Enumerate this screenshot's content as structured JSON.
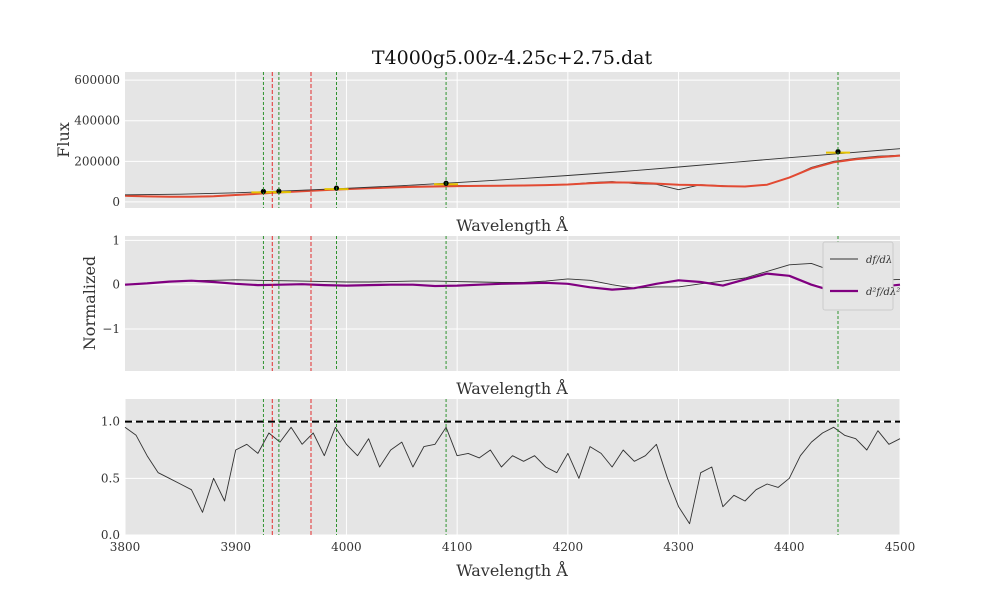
{
  "figure": {
    "title": "T4000g5.00z-4.25c+2.75.dat"
  },
  "colors": {
    "panel_bg": "#e5e5e5",
    "grid": "#ffffff",
    "spectrum": "#333333",
    "smooth_fit": "#e24a33",
    "second_derivative": "#800080",
    "red_lines": "#e41a1c",
    "green_lines": "#1a8a1a",
    "continuum_marks": "#e5c200",
    "dashed_one": "#000000"
  },
  "chart_data": [
    {
      "type": "line",
      "panel": "flux",
      "title": "T4000g5.00z-4.25c+2.75.dat",
      "xlabel": "Wavelength Å",
      "ylabel": "Flux",
      "xlim": [
        3800,
        4500
      ],
      "ylim": [
        -30000,
        640000
      ],
      "y_ticks": [
        0,
        200000,
        400000,
        600000
      ],
      "y_tick_labels": [
        "0",
        "200000",
        "400000",
        "600000"
      ],
      "x_ticks": [
        3900,
        4000,
        4100,
        4200,
        4300,
        4400
      ],
      "x_tick_labels_shown": false,
      "grid": true,
      "series": [
        {
          "role": "spectrum",
          "x": [
            3800,
            3820,
            3840,
            3860,
            3880,
            3900,
            3920,
            3940,
            3960,
            3980,
            4000,
            4020,
            4040,
            4060,
            4080,
            4100,
            4120,
            4140,
            4160,
            4180,
            4200,
            4220,
            4240,
            4260,
            4280,
            4300,
            4320,
            4340,
            4360,
            4380,
            4400,
            4420,
            4440,
            4460,
            4480,
            4500
          ],
          "y": [
            33000,
            28000,
            25000,
            24000,
            26000,
            35000,
            42000,
            50000,
            56000,
            60000,
            65000,
            70000,
            74000,
            77000,
            79000,
            81000,
            80000,
            79000,
            80000,
            83000,
            86000,
            95000,
            100000,
            90000,
            87000,
            60000,
            85000,
            80000,
            75000,
            85000,
            120000,
            170000,
            200000,
            215000,
            225000,
            230000
          ]
        },
        {
          "role": "smooth_fit",
          "x": [
            3800,
            3820,
            3840,
            3860,
            3880,
            3900,
            3920,
            3940,
            3960,
            3980,
            4000,
            4020,
            4040,
            4060,
            4080,
            4100,
            4120,
            4140,
            4160,
            4180,
            4200,
            4220,
            4240,
            4260,
            4280,
            4300,
            4320,
            4340,
            4360,
            4380,
            4400,
            4420,
            4440,
            4460,
            4480,
            4500
          ],
          "y": [
            30000,
            27000,
            25000,
            25000,
            28000,
            34000,
            40000,
            47000,
            53000,
            58000,
            63000,
            67000,
            71000,
            74000,
            76000,
            78000,
            79000,
            80000,
            81000,
            83000,
            86000,
            92000,
            96000,
            95000,
            90000,
            85000,
            83000,
            78000,
            76000,
            85000,
            120000,
            165000,
            195000,
            210000,
            220000,
            228000
          ]
        },
        {
          "role": "continuum",
          "x": [
            3800,
            3850,
            3900,
            3950,
            4000,
            4050,
            4100,
            4150,
            4200,
            4250,
            4300,
            4350,
            4400,
            4450,
            4500
          ],
          "y": [
            35000,
            38000,
            45000,
            55000,
            67000,
            80000,
            95000,
            112000,
            130000,
            150000,
            172000,
            195000,
            218000,
            240000,
            262000
          ]
        },
        {
          "role": "continuum_points",
          "x": [
            3925,
            3939,
            3991,
            4090,
            4444
          ],
          "y": [
            52000,
            53000,
            68000,
            92000,
            248000
          ]
        }
      ],
      "vlines_red": [
        3933,
        3968
      ],
      "vlines_green": [
        3925,
        3939,
        3991,
        4090,
        4444
      ]
    },
    {
      "type": "line",
      "panel": "derivatives",
      "xlabel": "Wavelength Å",
      "ylabel": "Normalized",
      "xlim": [
        3800,
        4500
      ],
      "ylim": [
        -1.95,
        1.1
      ],
      "y_ticks": [
        -1,
        0,
        1
      ],
      "y_tick_labels": [
        "−1",
        "0",
        "1"
      ],
      "x_ticks": [
        3900,
        4000,
        4100,
        4200,
        4300,
        4400
      ],
      "x_tick_labels_shown": false,
      "grid": true,
      "legend": {
        "placement": "right",
        "entries": [
          "df/dλ",
          "d²f/dλ²"
        ]
      },
      "series": [
        {
          "name": "df/dλ",
          "x": [
            3800,
            3820,
            3840,
            3860,
            3880,
            3900,
            3920,
            3940,
            3960,
            3980,
            4000,
            4020,
            4040,
            4060,
            4080,
            4100,
            4120,
            4140,
            4160,
            4180,
            4200,
            4220,
            4240,
            4260,
            4280,
            4300,
            4320,
            4340,
            4360,
            4380,
            4400,
            4420,
            4440,
            4460,
            4480,
            4500
          ],
          "y": [
            0.0,
            0.03,
            0.07,
            0.09,
            0.1,
            0.11,
            0.1,
            0.09,
            0.08,
            0.07,
            0.06,
            0.06,
            0.07,
            0.08,
            0.08,
            0.07,
            0.06,
            0.05,
            0.05,
            0.08,
            0.13,
            0.1,
            0.0,
            -0.08,
            -0.05,
            -0.05,
            0.02,
            0.08,
            0.15,
            0.3,
            0.45,
            0.48,
            0.3,
            0.15,
            0.1,
            0.12
          ]
        },
        {
          "name": "d²f/dλ²",
          "x": [
            3800,
            3820,
            3840,
            3860,
            3880,
            3900,
            3920,
            3940,
            3960,
            3980,
            4000,
            4020,
            4040,
            4060,
            4080,
            4100,
            4120,
            4140,
            4160,
            4180,
            4200,
            4220,
            4240,
            4260,
            4280,
            4300,
            4320,
            4340,
            4360,
            4380,
            4400,
            4420,
            4440,
            4460,
            4480,
            4500
          ],
          "y": [
            0.0,
            0.03,
            0.07,
            0.09,
            0.06,
            0.02,
            -0.01,
            0.0,
            0.01,
            -0.01,
            -0.02,
            -0.01,
            0.0,
            0.0,
            -0.03,
            -0.02,
            0.0,
            0.02,
            0.03,
            0.04,
            0.02,
            -0.06,
            -0.11,
            -0.08,
            0.02,
            0.1,
            0.06,
            -0.02,
            0.12,
            0.25,
            0.2,
            0.0,
            -0.15,
            -0.15,
            -0.05,
            0.0
          ]
        }
      ],
      "vlines_red": [
        3933,
        3968
      ],
      "vlines_green": [
        3925,
        3939,
        3991,
        4090,
        4444
      ]
    },
    {
      "type": "line",
      "panel": "normalized_flux",
      "xlabel": "Wavelength Å",
      "xlim": [
        3800,
        4500
      ],
      "ylim": [
        0.0,
        1.2
      ],
      "y_ticks": [
        0.0,
        0.5,
        1.0
      ],
      "y_tick_labels": [
        "0.0",
        "0.5",
        "1.0"
      ],
      "x_ticks": [
        3800,
        3900,
        4000,
        4100,
        4200,
        4300,
        4400,
        4500
      ],
      "x_tick_labels": [
        "3800",
        "3900",
        "4000",
        "4100",
        "4200",
        "4300",
        "4400",
        "4500"
      ],
      "grid": true,
      "reference_line": 1.0,
      "series": [
        {
          "role": "normalized_spectrum",
          "x": [
            3800,
            3810,
            3820,
            3830,
            3840,
            3850,
            3860,
            3870,
            3880,
            3890,
            3900,
            3910,
            3920,
            3930,
            3940,
            3950,
            3960,
            3970,
            3980,
            3990,
            4000,
            4010,
            4020,
            4030,
            4040,
            4050,
            4060,
            4070,
            4080,
            4090,
            4100,
            4110,
            4120,
            4130,
            4140,
            4150,
            4160,
            4170,
            4180,
            4190,
            4200,
            4210,
            4220,
            4230,
            4240,
            4250,
            4260,
            4270,
            4280,
            4290,
            4300,
            4310,
            4320,
            4330,
            4340,
            4350,
            4360,
            4370,
            4380,
            4390,
            4400,
            4410,
            4420,
            4430,
            4440,
            4450,
            4460,
            4470,
            4480,
            4490,
            4500
          ],
          "y": [
            0.95,
            0.88,
            0.7,
            0.55,
            0.5,
            0.45,
            0.4,
            0.2,
            0.5,
            0.3,
            0.75,
            0.8,
            0.72,
            0.9,
            0.82,
            0.95,
            0.8,
            0.9,
            0.7,
            0.95,
            0.8,
            0.7,
            0.85,
            0.6,
            0.75,
            0.82,
            0.6,
            0.78,
            0.8,
            0.95,
            0.7,
            0.72,
            0.68,
            0.75,
            0.6,
            0.7,
            0.65,
            0.7,
            0.6,
            0.55,
            0.72,
            0.5,
            0.78,
            0.72,
            0.6,
            0.75,
            0.65,
            0.7,
            0.8,
            0.5,
            0.25,
            0.1,
            0.55,
            0.6,
            0.25,
            0.35,
            0.3,
            0.4,
            0.45,
            0.42,
            0.5,
            0.7,
            0.82,
            0.9,
            0.95,
            0.88,
            0.85,
            0.75,
            0.92,
            0.8,
            0.85
          ]
        }
      ],
      "vlines_red": [
        3933,
        3968
      ],
      "vlines_green": [
        3925,
        3939,
        3991,
        4090,
        4444
      ]
    }
  ]
}
